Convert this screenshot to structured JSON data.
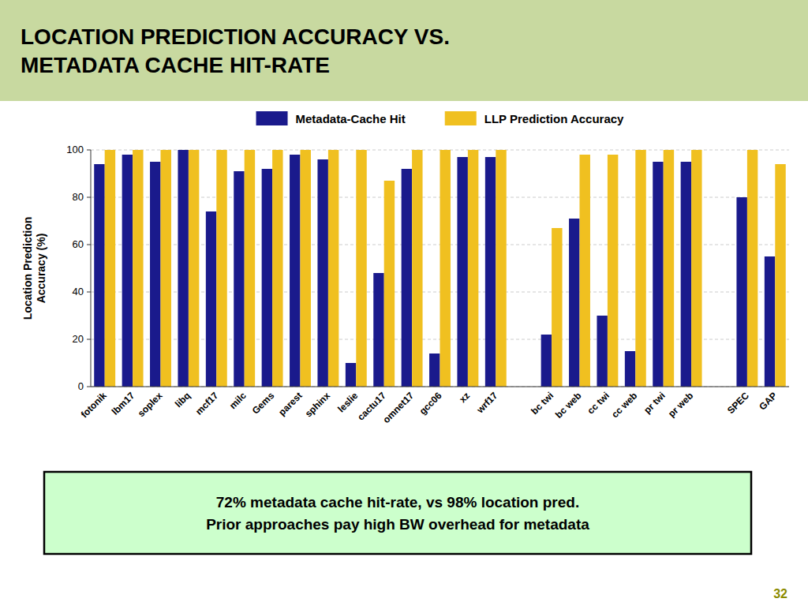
{
  "chart_data": {
    "type": "bar",
    "title": "LOCATION PREDICTION ACCURACY VS.\nMETADATA CACHE HIT-RATE",
    "y_label": "Location Prediction\nAccuracy (%)",
    "categories": [
      "fotonik",
      "lbm17",
      "soplex",
      "libq",
      "mcf17",
      "milc",
      "Gems",
      "parest",
      "sphinx",
      "leslie",
      "cactu17",
      "omnet17",
      "gcc06",
      "xz",
      "wrf17",
      null,
      "bc twi",
      "bc web",
      "cc twi",
      "cc web",
      "pr twi",
      "pr web",
      null,
      "SPEC",
      "GAP"
    ],
    "series": [
      {
        "name": "Metadata-Cache Hit",
        "color": "#1a1a8c",
        "values": [
          94,
          98,
          95,
          100,
          74,
          91,
          92,
          98,
          96,
          10,
          48,
          92,
          14,
          97,
          97,
          0,
          22,
          71,
          30,
          15,
          95,
          95,
          0,
          80,
          55
        ]
      },
      {
        "name": "LLP Prediction Accuracy",
        "color": "#f0c020",
        "values": [
          100,
          100,
          100,
          100,
          100,
          100,
          100,
          100,
          100,
          100,
          87,
          100,
          100,
          100,
          100,
          0,
          67,
          98,
          98,
          100,
          100,
          100,
          0,
          100,
          94
        ]
      }
    ],
    "ylim": [
      0,
      100
    ],
    "yticks": [
      0,
      20,
      40,
      60,
      80,
      100
    ],
    "grid": true,
    "legend": "top",
    "annotations": [
      "72% metadata cache hit-rate, vs 98% location pred.\nPrior approaches pay high BW overhead for metadata",
      "32"
    ]
  }
}
